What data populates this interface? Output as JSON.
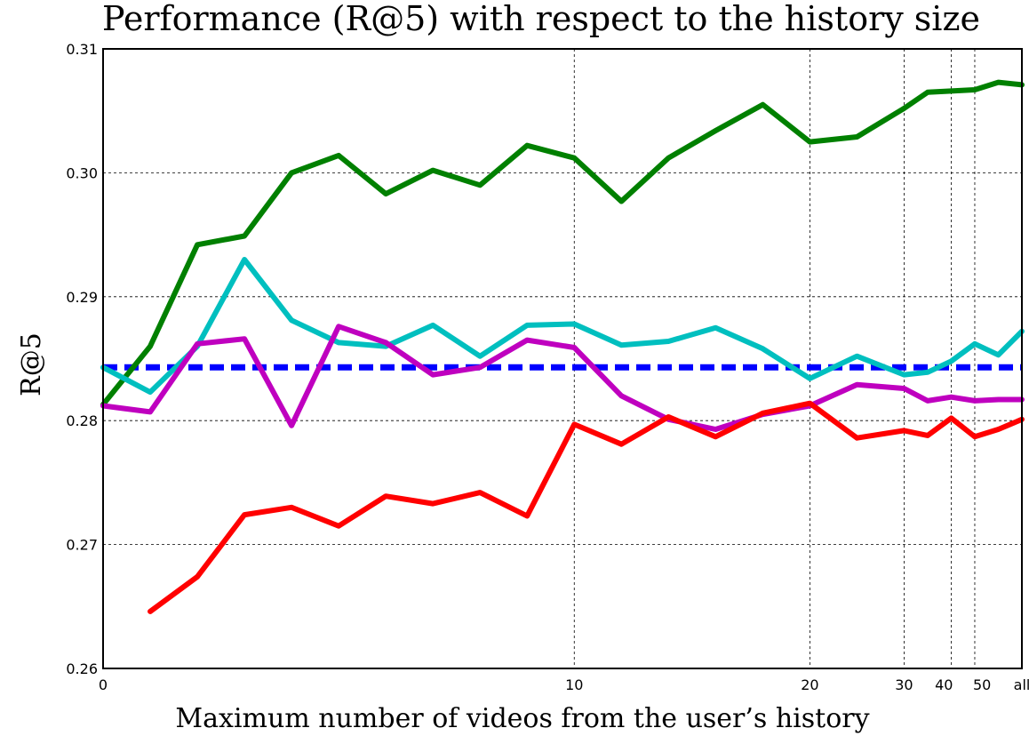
{
  "chart_data": {
    "type": "line",
    "title": "Performance (R@5) with respect to the history size",
    "xlabel": "Maximum number of videos from the user’s history",
    "ylabel": "R@5",
    "ylim": [
      0.26,
      0.31
    ],
    "yticks": [
      "0.26",
      "0.27",
      "0.28",
      "0.29",
      "0.30",
      "0.31"
    ],
    "xticks": [
      {
        "label": "0",
        "index": 0
      },
      {
        "label": "10",
        "index": 10
      },
      {
        "label": "20",
        "index": 15
      },
      {
        "label": "30",
        "index": 17
      },
      {
        "label": "40",
        "index": 18
      },
      {
        "label": "50",
        "index": 18.5
      },
      {
        "label": "all",
        "index": 19.5
      }
    ],
    "x_index": [
      0,
      1,
      2,
      3,
      4,
      5,
      6,
      7,
      8,
      9,
      10,
      11,
      12,
      13,
      14,
      15,
      16,
      17,
      17.5,
      18,
      18.5,
      19,
      19.5
    ],
    "grid": true,
    "series": [
      {
        "color": "#0000ff",
        "style": "dashed",
        "values": [
          0.2843,
          0.2843,
          0.2843,
          0.2843,
          0.2843,
          0.2843,
          0.2843,
          0.2843,
          0.2843,
          0.2843,
          0.2843,
          0.2843,
          0.2843,
          0.2843,
          0.2843,
          0.2843,
          0.2843,
          0.2843,
          0.2843,
          0.2843,
          0.2843,
          0.2843,
          0.2843
        ]
      },
      {
        "color": "#008000",
        "style": "solid",
        "values": [
          0.2813,
          0.286,
          0.2942,
          0.2949,
          0.3,
          0.3014,
          0.2983,
          0.3002,
          0.299,
          0.3022,
          0.3012,
          0.2977,
          0.3012,
          0.3034,
          0.3055,
          0.3025,
          0.3029,
          0.3052,
          0.3065,
          0.3066,
          0.3067,
          0.3073,
          0.3071
        ]
      },
      {
        "color": "#00bfbf",
        "style": "solid",
        "values": [
          0.2843,
          0.2823,
          0.286,
          0.293,
          0.2881,
          0.2863,
          0.286,
          0.2877,
          0.2852,
          0.2877,
          0.2878,
          0.2861,
          0.2864,
          0.2875,
          0.2858,
          0.2834,
          0.2852,
          0.2837,
          0.2839,
          0.2848,
          0.2862,
          0.2853,
          0.2872
        ]
      },
      {
        "color": "#bf00bf",
        "style": "solid",
        "values": [
          0.2812,
          0.2807,
          0.2862,
          0.2866,
          0.2796,
          0.2876,
          0.2863,
          0.2837,
          0.2843,
          0.2865,
          0.2859,
          0.282,
          0.2801,
          0.2793,
          0.2805,
          0.2812,
          0.2829,
          0.2826,
          0.2816,
          0.2819,
          0.2816,
          0.2817,
          0.2817
        ]
      },
      {
        "color": "#ff0000",
        "style": "solid",
        "values": [
          null,
          0.2646,
          0.2674,
          0.2724,
          0.273,
          0.2715,
          0.2739,
          0.2733,
          0.2742,
          0.2723,
          0.2797,
          0.2781,
          0.2803,
          0.2787,
          0.2806,
          0.2814,
          0.2786,
          0.2792,
          0.2788,
          0.2802,
          0.2787,
          0.2793,
          0.2801
        ]
      }
    ]
  }
}
